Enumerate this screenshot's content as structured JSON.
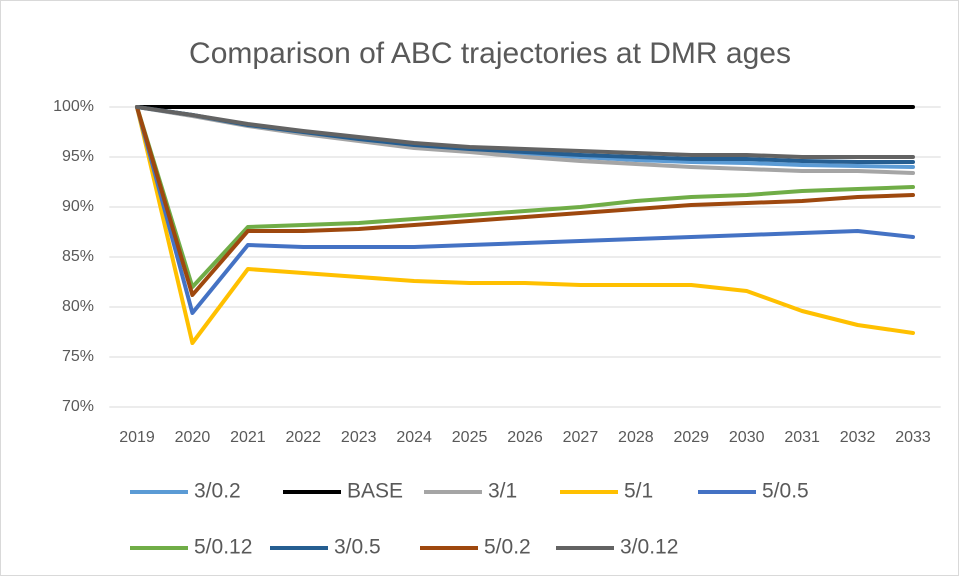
{
  "chart_data": {
    "type": "line",
    "title": "Comparison of ABC trajectories at DMR ages",
    "categories": [
      "2019",
      "2020",
      "2021",
      "2022",
      "2023",
      "2024",
      "2025",
      "2026",
      "2027",
      "2028",
      "2029",
      "2030",
      "2031",
      "2032",
      "2033"
    ],
    "ylim": [
      70,
      100
    ],
    "yticks": [
      {
        "value": 70,
        "label": "70%"
      },
      {
        "value": 75,
        "label": "75%"
      },
      {
        "value": 80,
        "label": "80%"
      },
      {
        "value": 85,
        "label": "85%"
      },
      {
        "value": 90,
        "label": "90%"
      },
      {
        "value": 95,
        "label": "95%"
      },
      {
        "value": 100,
        "label": "100%"
      }
    ],
    "grid": true,
    "legend": "bottom",
    "series": [
      {
        "name": "3/0.2",
        "color": "#5b9bd5",
        "values": [
          100,
          99.2,
          98.2,
          97.5,
          96.8,
          96.1,
          95.7,
          95.3,
          95.0,
          94.7,
          94.5,
          94.4,
          94.2,
          94.1,
          94.0
        ]
      },
      {
        "name": "BASE",
        "color": "#000000",
        "values": [
          100,
          100,
          100,
          100,
          100,
          100,
          100,
          100,
          100,
          100,
          100,
          100,
          100,
          100,
          100
        ]
      },
      {
        "name": "3/1",
        "color": "#a5a5a5",
        "values": [
          100,
          99.1,
          98.1,
          97.3,
          96.6,
          95.9,
          95.5,
          95.0,
          94.6,
          94.3,
          94.0,
          93.8,
          93.6,
          93.6,
          93.4
        ]
      },
      {
        "name": "5/1",
        "color": "#ffc000",
        "values": [
          100,
          76.4,
          83.8,
          83.4,
          83.0,
          82.6,
          82.4,
          82.4,
          82.2,
          82.2,
          82.2,
          81.6,
          79.6,
          78.2,
          77.4
        ]
      },
      {
        "name": "5/0.5",
        "color": "#4472c4",
        "values": [
          100,
          79.4,
          86.2,
          86.0,
          86.0,
          86.0,
          86.2,
          86.4,
          86.6,
          86.8,
          87.0,
          87.2,
          87.4,
          87.6,
          87.0
        ]
      },
      {
        "name": "5/0.12",
        "color": "#70ad47",
        "values": [
          100,
          82.0,
          88.0,
          88.2,
          88.4,
          88.8,
          89.2,
          89.6,
          90.0,
          90.6,
          91.0,
          91.2,
          91.6,
          91.8,
          92.0
        ]
      },
      {
        "name": "3/0.5",
        "color": "#255e91",
        "values": [
          100,
          99.2,
          98.2,
          97.5,
          96.8,
          96.2,
          95.8,
          95.5,
          95.2,
          95.0,
          94.8,
          94.8,
          94.6,
          94.5,
          94.5
        ]
      },
      {
        "name": "5/0.2",
        "color": "#9e480e",
        "values": [
          100,
          81.2,
          87.6,
          87.6,
          87.8,
          88.2,
          88.6,
          89.0,
          89.4,
          89.8,
          90.2,
          90.4,
          90.6,
          91.0,
          91.2
        ]
      },
      {
        "name": "3/0.12",
        "color": "#636363",
        "values": [
          100,
          99.2,
          98.3,
          97.6,
          97.0,
          96.4,
          96.0,
          95.8,
          95.6,
          95.4,
          95.2,
          95.2,
          95.0,
          95.0,
          95.0
        ]
      }
    ]
  }
}
